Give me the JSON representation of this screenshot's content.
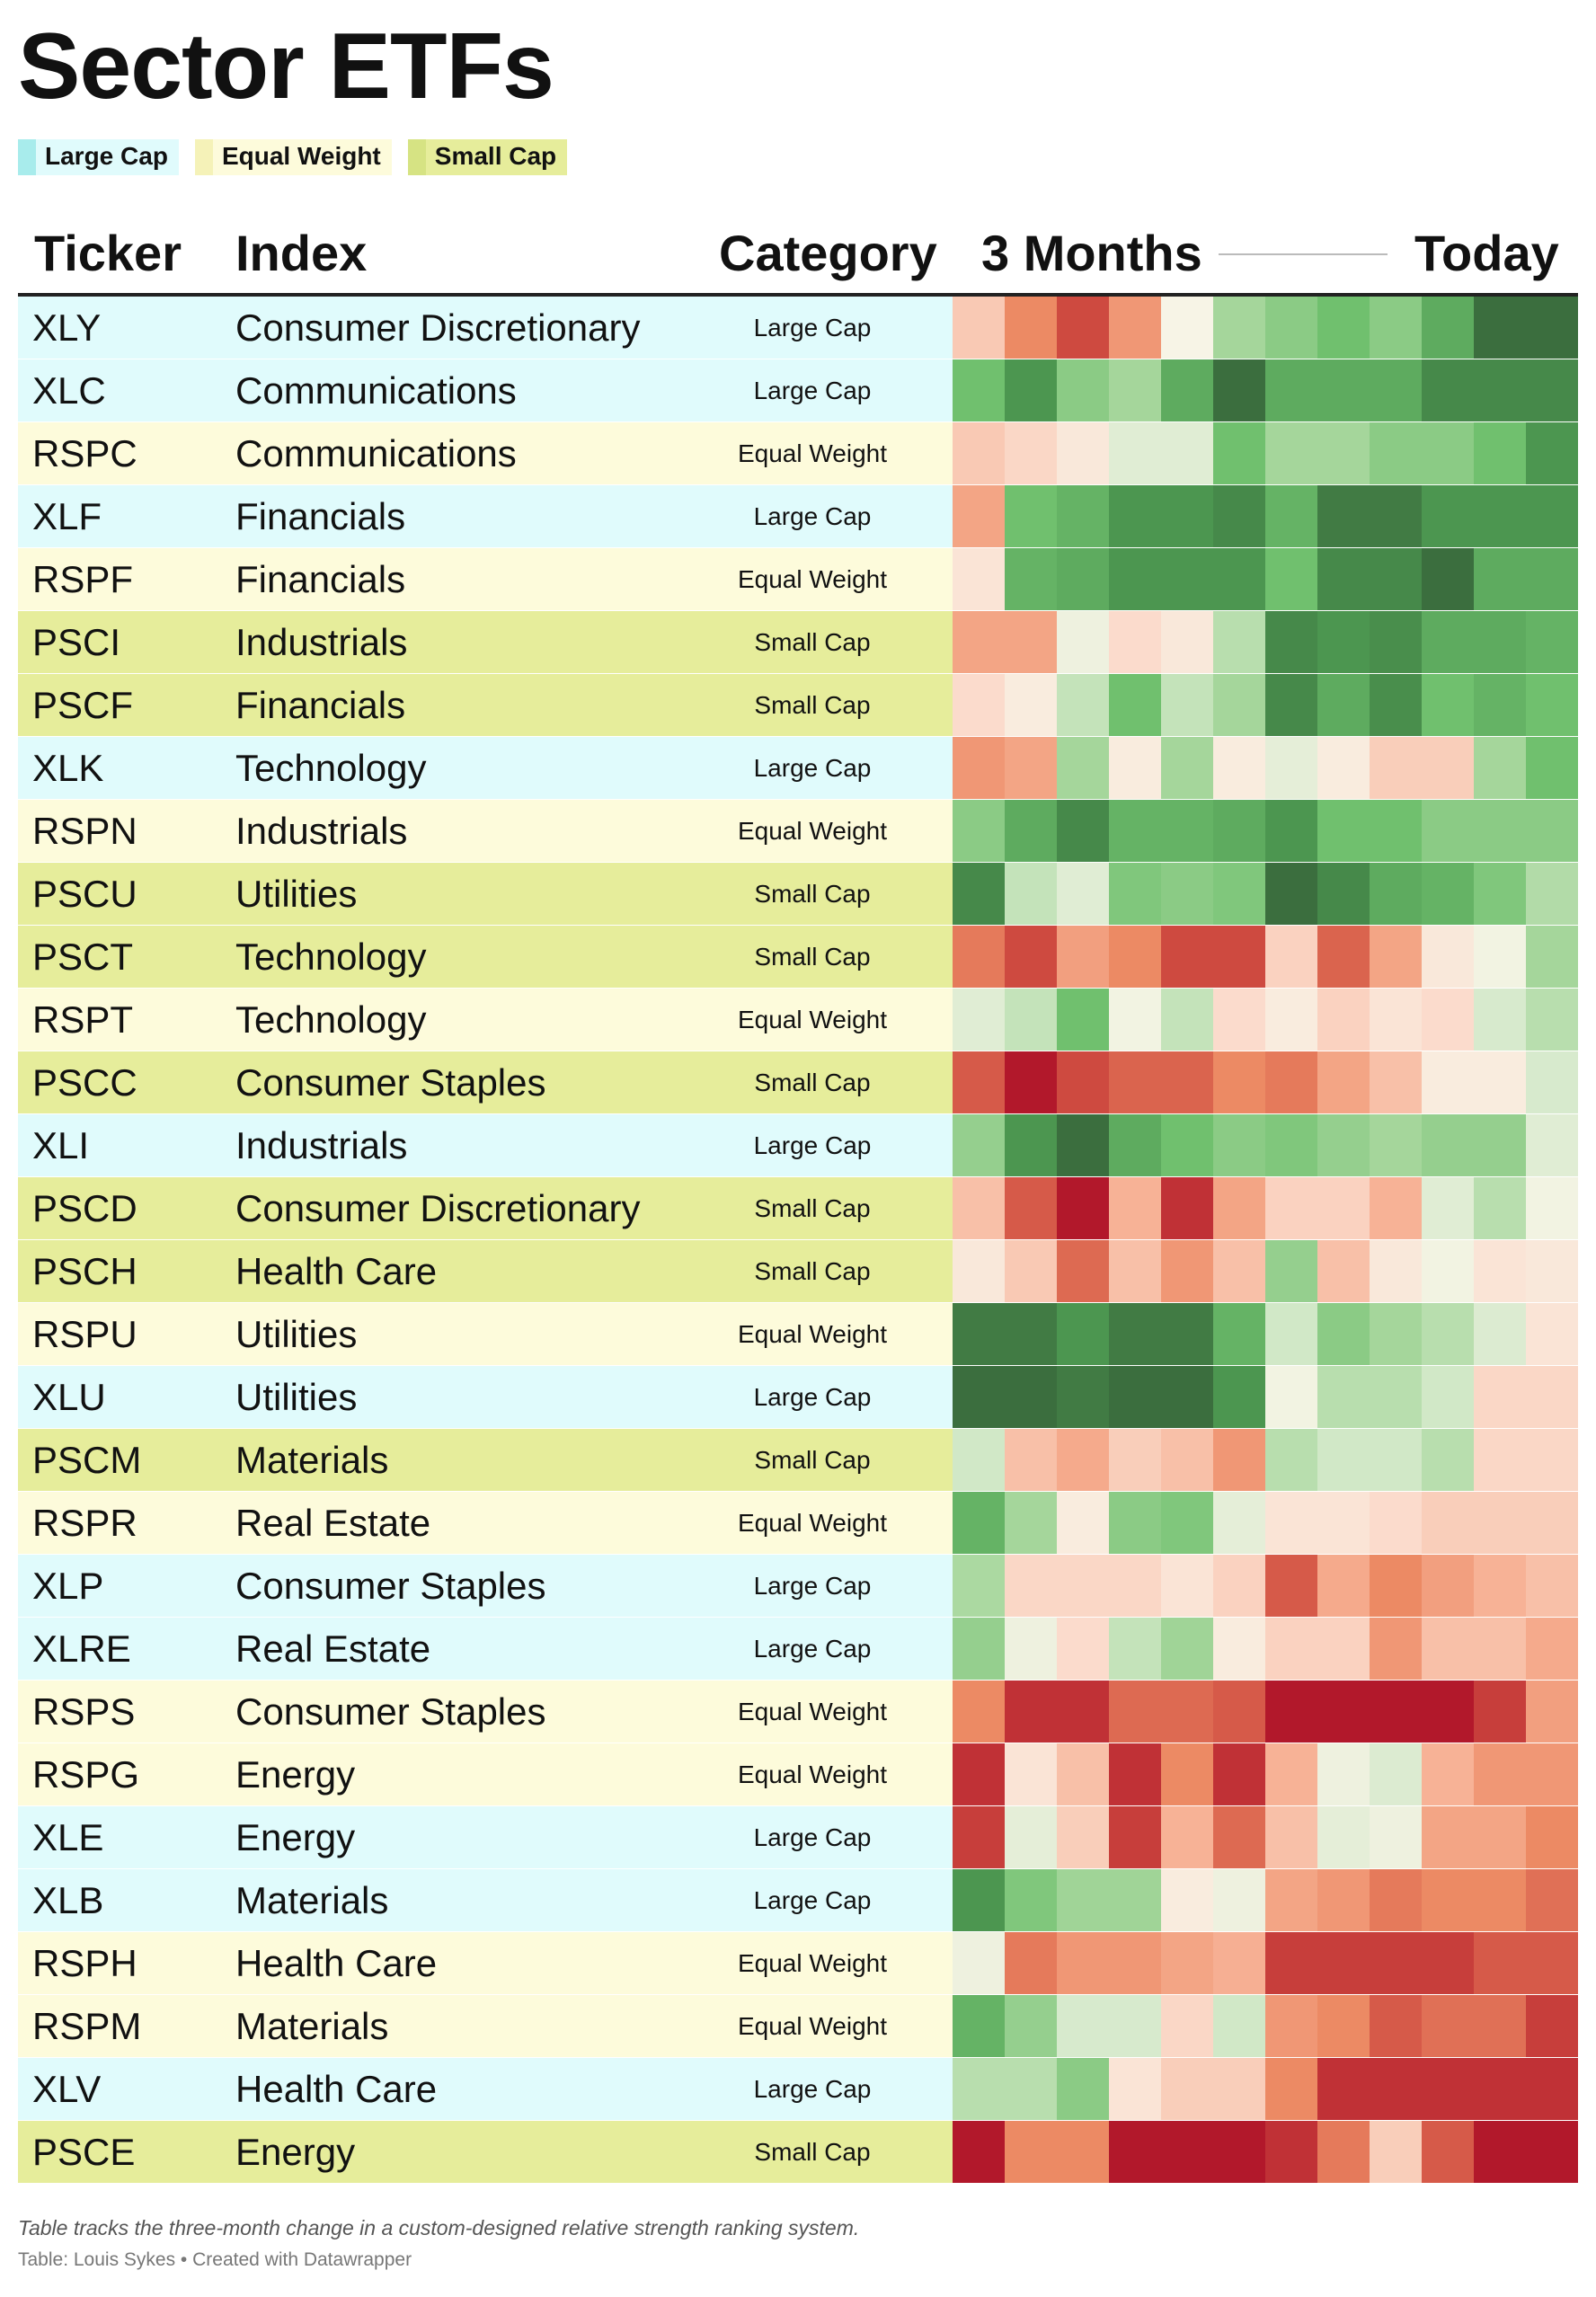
{
  "title": "Sector ETFs",
  "legend": [
    {
      "label": "Large Cap",
      "color": "#a8ecec",
      "bg": "#e0fbfc"
    },
    {
      "label": "Equal Weight",
      "color": "#f5f2b8",
      "bg": "#fdfbdb"
    },
    {
      "label": "Small Cap",
      "color": "#d6e383",
      "bg": "#e6ed9b"
    }
  ],
  "headers": {
    "ticker": "Ticker",
    "index": "Index",
    "category": "Category",
    "months": "3 Months",
    "today": "Today"
  },
  "category_colors": {
    "Large Cap": "#e0fbfc",
    "Equal Weight": "#fdfbdb",
    "Small Cap": "#e6ed9b"
  },
  "color_scale": {
    "strong_negative": "#b2182b",
    "neutral": "#f7f4e6",
    "strong_positive": "#3b6e3e"
  },
  "chart_data": {
    "type": "heatmap",
    "title": "Sector ETFs",
    "columns_label": [
      "3 Months",
      "Today"
    ],
    "note": "Table tracks the three-month change in a custom-designed relative strength ranking system.",
    "rows": [
      {
        "ticker": "XLY",
        "index": "Consumer Discretionary",
        "category": "Large Cap",
        "values": [
          -1,
          -3,
          -5,
          -2.5,
          0,
          1.5,
          2,
          2.5,
          2,
          3,
          5,
          5
        ]
      },
      {
        "ticker": "XLC",
        "index": "Communications",
        "category": "Large Cap",
        "values": [
          2.5,
          3.5,
          2,
          1.5,
          3,
          5,
          3,
          3,
          3,
          4,
          4,
          4
        ]
      },
      {
        "ticker": "RSPC",
        "index": "Communications",
        "category": "Equal Weight",
        "values": [
          -1,
          -0.7,
          -0.3,
          0.5,
          0.5,
          2.5,
          1.5,
          1.5,
          2,
          2,
          2.5,
          3.5
        ]
      },
      {
        "ticker": "XLF",
        "index": "Financials",
        "category": "Large Cap",
        "values": [
          -2,
          2.5,
          2.8,
          3.5,
          3.5,
          4,
          2.8,
          4.5,
          4.5,
          3.5,
          3.5,
          3.5
        ]
      },
      {
        "ticker": "RSPF",
        "index": "Financials",
        "category": "Equal Weight",
        "values": [
          -0.4,
          2.8,
          3,
          3.5,
          3.5,
          3.5,
          2.5,
          4,
          4,
          5,
          3,
          3
        ]
      },
      {
        "ticker": "PSCI",
        "index": "Industrials",
        "category": "Small Cap",
        "values": [
          -2,
          -2,
          0.2,
          -0.6,
          -0.3,
          1.2,
          4,
          3.5,
          3.8,
          3,
          3,
          2.8
        ]
      },
      {
        "ticker": "PSCF",
        "index": "Financials",
        "category": "Small Cap",
        "values": [
          -0.6,
          -0.2,
          1,
          2.5,
          1,
          1.5,
          4,
          3,
          3.8,
          2.5,
          2.8,
          2.5
        ]
      },
      {
        "ticker": "XLK",
        "index": "Technology",
        "category": "Large Cap",
        "values": [
          -2.5,
          -2,
          1.5,
          -0.2,
          1.5,
          -0.2,
          0.4,
          -0.2,
          -0.9,
          -0.9,
          1.5,
          2.5
        ]
      },
      {
        "ticker": "RSPN",
        "index": "Industrials",
        "category": "Equal Weight",
        "values": [
          2,
          3,
          4,
          2.8,
          2.8,
          3,
          3.5,
          2.5,
          2.5,
          2,
          2,
          2
        ]
      },
      {
        "ticker": "PSCU",
        "index": "Utilities",
        "category": "Small Cap",
        "values": [
          4,
          1,
          0.5,
          2.2,
          2,
          2.2,
          5,
          4,
          3,
          2.8,
          2.2,
          1.3
        ]
      },
      {
        "ticker": "PSCT",
        "index": "Technology",
        "category": "Small Cap",
        "values": [
          -3.5,
          -5,
          -2.2,
          -3,
          -5,
          -5,
          -0.8,
          -4.2,
          -2,
          -0.3,
          0.1,
          1.5
        ]
      },
      {
        "ticker": "RSPT",
        "index": "Technology",
        "category": "Equal Weight",
        "values": [
          0.5,
          1,
          2.5,
          0.1,
          1,
          -0.6,
          -0.2,
          -0.8,
          -0.4,
          -0.6,
          0.7,
          1.2
        ]
      },
      {
        "ticker": "PSCC",
        "index": "Consumer Staples",
        "category": "Small Cap",
        "values": [
          -4.5,
          -7,
          -5,
          -4.2,
          -4.2,
          -3,
          -3.5,
          -2,
          -1.2,
          -0.2,
          -0.2,
          0.7
        ]
      },
      {
        "ticker": "XLI",
        "index": "Industrials",
        "category": "Large Cap",
        "values": [
          1.8,
          3.5,
          5,
          3,
          2.5,
          2,
          2.2,
          1.8,
          1.5,
          1.8,
          1.8,
          0.5
        ]
      },
      {
        "ticker": "PSCD",
        "index": "Consumer Discretionary",
        "category": "Small Cap",
        "values": [
          -1.2,
          -4.5,
          -7,
          -1.5,
          -6,
          -2,
          -0.8,
          -0.8,
          -1.5,
          0.5,
          1.2,
          0.1
        ]
      },
      {
        "ticker": "PSCH",
        "index": "Health Care",
        "category": "Small Cap",
        "values": [
          -0.3,
          -1,
          -4,
          -1.2,
          -2.5,
          -1.2,
          1.8,
          -1.2,
          -0.3,
          0.1,
          -0.4,
          -0.3
        ]
      },
      {
        "ticker": "RSPU",
        "index": "Utilities",
        "category": "Equal Weight",
        "values": [
          4.5,
          4.5,
          3.5,
          4.5,
          4.5,
          2.8,
          0.8,
          2,
          1.5,
          1.2,
          0.6,
          -0.4
        ]
      },
      {
        "ticker": "XLU",
        "index": "Utilities",
        "category": "Large Cap",
        "values": [
          5,
          5,
          4.5,
          5,
          5,
          3.5,
          0.1,
          1.2,
          1.2,
          0.8,
          -0.7,
          -0.7
        ]
      },
      {
        "ticker": "PSCM",
        "index": "Materials",
        "category": "Small Cap",
        "values": [
          0.8,
          -1.2,
          -1.8,
          -0.9,
          -1.2,
          -2.5,
          1.2,
          0.8,
          0.8,
          1.2,
          -0.7,
          -0.7
        ]
      },
      {
        "ticker": "RSPR",
        "index": "Real Estate",
        "category": "Equal Weight",
        "values": [
          2.8,
          1.5,
          -0.2,
          2,
          2.2,
          0.4,
          -0.4,
          -0.4,
          -0.6,
          -0.9,
          -0.9,
          -0.9
        ]
      },
      {
        "ticker": "XLP",
        "index": "Consumer Staples",
        "category": "Large Cap",
        "values": [
          1.4,
          -0.7,
          -0.7,
          -0.7,
          -0.4,
          -0.8,
          -4.5,
          -1.8,
          -3,
          -2.2,
          -1.5,
          -1.2
        ]
      },
      {
        "ticker": "XLRE",
        "index": "Real Estate",
        "category": "Large Cap",
        "values": [
          1.8,
          0.2,
          -0.6,
          1,
          1.6,
          -0.2,
          -0.8,
          -0.8,
          -2.5,
          -1.2,
          -1.2,
          -1.8
        ]
      },
      {
        "ticker": "RSPS",
        "index": "Consumer Staples",
        "category": "Equal Weight",
        "values": [
          -3,
          -6,
          -6,
          -4,
          -4,
          -4.5,
          -7,
          -7,
          -7,
          -7,
          -5.5,
          -2.2
        ]
      },
      {
        "ticker": "RSPG",
        "index": "Energy",
        "category": "Equal Weight",
        "values": [
          -6,
          -0.4,
          -1.2,
          -6,
          -3,
          -6,
          -1.5,
          0.2,
          0.6,
          -1.5,
          -2.5,
          -2.5
        ]
      },
      {
        "ticker": "XLE",
        "index": "Energy",
        "category": "Large Cap",
        "values": [
          -5.5,
          0.4,
          -0.9,
          -5.5,
          -1.5,
          -4,
          -1.2,
          0.4,
          0.2,
          -2,
          -2,
          -3
        ]
      },
      {
        "ticker": "XLB",
        "index": "Materials",
        "category": "Large Cap",
        "values": [
          3.5,
          2.2,
          1.6,
          1.6,
          -0.2,
          0.2,
          -2,
          -2.5,
          -3.5,
          -3,
          -3,
          -3.8
        ]
      },
      {
        "ticker": "RSPH",
        "index": "Health Care",
        "category": "Equal Weight",
        "values": [
          0.2,
          -3.5,
          -2.5,
          -2.5,
          -2,
          -1.6,
          -5.5,
          -5.5,
          -5.5,
          -5.5,
          -4.5,
          -4.5
        ]
      },
      {
        "ticker": "RSPM",
        "index": "Materials",
        "category": "Equal Weight",
        "values": [
          2.8,
          1.8,
          0.7,
          0.7,
          -0.7,
          0.8,
          -2.5,
          -3,
          -4.5,
          -3.8,
          -3.8,
          -5.5
        ]
      },
      {
        "ticker": "XLV",
        "index": "Health Care",
        "category": "Large Cap",
        "values": [
          1.2,
          1.2,
          2,
          -0.4,
          -0.9,
          -0.9,
          -3,
          -6,
          -6,
          -6,
          -6,
          -6
        ]
      },
      {
        "ticker": "PSCE",
        "index": "Energy",
        "category": "Small Cap",
        "values": [
          -7,
          -3,
          -3,
          -7,
          -7,
          -7,
          -6,
          -3.5,
          -0.9,
          -4.5,
          -7,
          -7
        ]
      }
    ]
  },
  "footer": {
    "note": "Table tracks the three-month change in a custom-designed relative strength ranking system.",
    "credit": "Table: Louis Sykes • Created with Datawrapper"
  }
}
